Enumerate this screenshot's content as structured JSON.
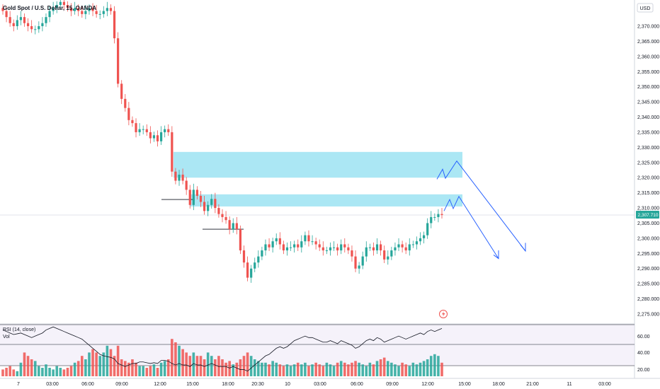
{
  "title": "Gold Spot / U.S. Dollar, 15, OANDA",
  "currency_label": "USD",
  "current_price_label": "2,307.710",
  "indicators": {
    "rsi_label": "RSI (14, close)",
    "vol_label": "Vol",
    "rsi_ticks": [
      "60.00",
      "40.00",
      "20.00"
    ]
  },
  "colors": {
    "up": "#26a69a",
    "down": "#ef5350",
    "zone": "#8fdff0",
    "arrow": "#2962ff",
    "price_tag": "#26a69a"
  },
  "chart_data": {
    "type": "candlestick",
    "title": "Gold Spot / U.S. Dollar, 15, OANDA",
    "ylabel": "USD",
    "ylim": [
      2272,
      2375
    ],
    "y_ticks": [
      2370,
      2365,
      2360,
      2355,
      2350,
      2345,
      2340,
      2335,
      2330,
      2325,
      2320,
      2315,
      2310,
      2305,
      2300,
      2295,
      2290,
      2285,
      2280,
      2275
    ],
    "y_tick_labels": [
      "2,370.000",
      "2,365.000",
      "2,360.000",
      "2,355.000",
      "2,350.000",
      "2,345.000",
      "2,340.000",
      "2,335.000",
      "2,330.000",
      "2,325.000",
      "2,320.000",
      "2,315.000",
      "2,310.000",
      "2,305.000",
      "2,300.000",
      "2,295.000",
      "2,290.000",
      "2,285.000",
      "2,280.000",
      "2,275.000"
    ],
    "x_ticks": [
      "7",
      "03:00",
      "06:00",
      "09:00",
      "12:00",
      "15:00",
      "18:00",
      "20:30",
      "10",
      "03:00",
      "06:00",
      "09:00",
      "12:00",
      "15:00",
      "18:00",
      "21:00",
      "11",
      "03:00"
    ],
    "current_price": 2307.71,
    "closes": [
      2375,
      2373,
      2371,
      2370,
      2372,
      2373,
      2371,
      2370,
      2369,
      2369,
      2370,
      2371,
      2373,
      2375,
      2376,
      2377,
      2378,
      2377,
      2376,
      2375,
      2376,
      2375,
      2374,
      2375,
      2376,
      2375,
      2374,
      2374,
      2375,
      2376,
      2375,
      2366,
      2351,
      2346,
      2343,
      2339,
      2338,
      2335,
      2336,
      2336,
      2335,
      2333,
      2334,
      2332,
      2335,
      2336,
      2335,
      2322,
      2319,
      2321,
      2319,
      2316,
      2311,
      2316,
      2314,
      2312,
      2309,
      2311,
      2313,
      2310,
      2308,
      2307,
      2306,
      2303,
      2305,
      2303,
      2296,
      2292,
      2287,
      2290,
      2292,
      2294,
      2296,
      2298,
      2297,
      2299,
      2300,
      2298,
      2296,
      2297,
      2297,
      2298,
      2297,
      2299,
      2301,
      2299,
      2299,
      2298,
      2297,
      2296,
      2296,
      2297,
      2297,
      2296,
      2298,
      2297,
      2296,
      2294,
      2290,
      2291,
      2294,
      2297,
      2297,
      2296,
      2298,
      2296,
      2293,
      2294,
      2296,
      2297,
      2298,
      2297,
      2296,
      2298,
      2298,
      2299,
      2300,
      2301,
      2305,
      2307,
      2307,
      2308,
      2307.7
    ],
    "rsi": [
      68,
      66,
      64,
      62,
      63,
      64,
      62,
      60,
      58,
      60,
      62,
      64,
      68,
      70,
      72,
      70,
      68,
      66,
      64,
      62,
      60,
      58,
      56,
      52,
      48,
      44,
      40,
      36,
      34,
      33,
      32,
      30,
      24,
      22,
      20,
      22,
      24,
      24,
      26,
      26,
      25,
      24,
      25,
      24,
      28,
      28,
      27,
      24,
      22,
      24,
      22,
      22,
      20,
      24,
      22,
      22,
      20,
      22,
      24,
      22,
      20,
      20,
      20,
      18,
      20,
      18,
      16,
      16,
      14,
      18,
      22,
      26,
      30,
      34,
      36,
      40,
      44,
      46,
      44,
      46,
      50,
      54,
      56,
      58,
      60,
      58,
      58,
      56,
      54,
      52,
      52,
      54,
      52,
      50,
      54,
      52,
      50,
      48,
      44,
      46,
      50,
      54,
      56,
      54,
      58,
      56,
      52,
      54,
      56,
      58,
      60,
      58,
      56,
      58,
      60,
      62,
      64,
      62,
      66,
      68,
      66,
      68,
      70
    ],
    "volume": [
      4,
      5,
      6,
      4,
      3,
      8,
      14,
      12,
      10,
      9,
      6,
      5,
      7,
      5,
      4,
      6,
      5,
      4,
      5,
      6,
      8,
      9,
      12,
      10,
      14,
      16,
      14,
      12,
      14,
      18,
      16,
      12,
      18,
      10,
      9,
      8,
      10,
      8,
      6,
      6,
      5,
      6,
      7,
      5,
      8,
      9,
      10,
      22,
      20,
      18,
      16,
      14,
      12,
      14,
      12,
      12,
      10,
      14,
      12,
      10,
      12,
      10,
      8,
      9,
      7,
      8,
      10,
      12,
      14,
      12,
      10,
      9,
      8,
      8,
      7,
      9,
      8,
      7,
      6,
      7,
      6,
      7,
      8,
      7,
      8,
      6,
      7,
      8,
      7,
      6,
      8,
      7,
      6,
      8,
      9,
      8,
      7,
      8,
      9,
      8,
      7,
      6,
      8,
      7,
      9,
      10,
      11,
      9,
      8,
      7,
      6,
      8,
      7,
      6,
      8,
      7,
      8,
      9,
      10,
      12,
      13,
      12,
      8
    ]
  }
}
